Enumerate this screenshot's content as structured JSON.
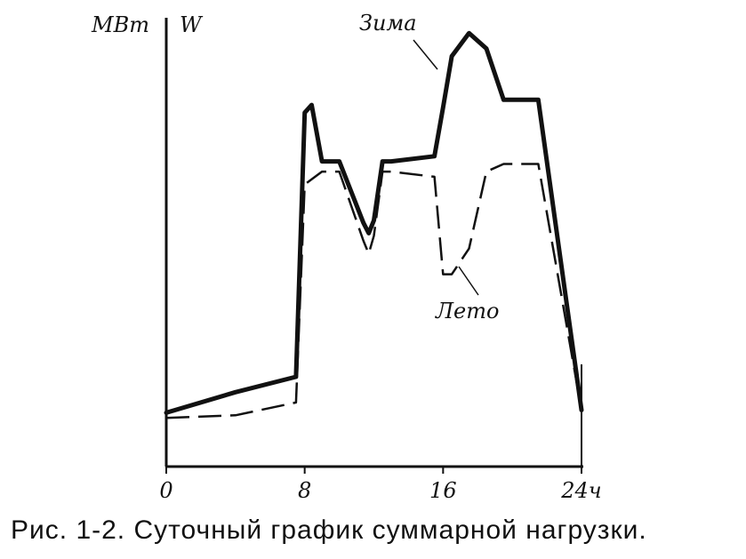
{
  "chart_data": {
    "type": "line",
    "x": [
      0,
      4,
      7.5,
      8,
      8.4,
      9,
      10,
      11.4,
      11.7,
      12,
      12.5,
      13,
      15.5,
      16,
      16.5,
      17.5,
      18.5,
      19.5,
      21.5,
      24
    ],
    "series": [
      {
        "name": "Зима",
        "values": [
          2.1,
          2.9,
          3.5,
          13.8,
          14.1,
          11.9,
          11.9,
          9.5,
          9.1,
          9.6,
          11.9,
          11.9,
          12.1,
          14.0,
          16.0,
          16.9,
          16.3,
          14.3,
          14.3,
          2.2
        ]
      },
      {
        "name": "Лето",
        "values": [
          1.9,
          2.0,
          2.5,
          11.0,
          11.2,
          11.5,
          11.5,
          8.8,
          8.3,
          9.0,
          11.5,
          11.5,
          11.3,
          7.5,
          7.5,
          8.5,
          11.5,
          11.8,
          11.8,
          2.2
        ]
      }
    ],
    "xlabel": "ч",
    "ylabel_left": "МВт",
    "ylabel_right": "W",
    "xticks": [
      "0",
      "8",
      "16",
      "24"
    ],
    "xlim": [
      0,
      24
    ],
    "ylim": [
      0,
      17.5
    ],
    "grid": false,
    "legend": "inline labels"
  },
  "caption": "Рис. 1-2. Суточный график суммарной нагрузки."
}
